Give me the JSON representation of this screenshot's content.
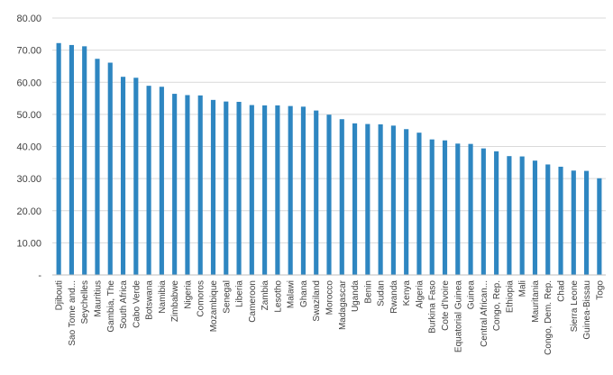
{
  "chart_data": {
    "type": "bar",
    "title": "",
    "xlabel": "",
    "ylabel": "",
    "ylim": [
      0,
      80
    ],
    "yticks": [
      0,
      10,
      20,
      30,
      40,
      50,
      60,
      70,
      80
    ],
    "ytick_labels": [
      "-",
      "10.00",
      "20.00",
      "30.00",
      "40.00",
      "50.00",
      "60.00",
      "70.00",
      "80.00"
    ],
    "grid": true,
    "legend": "none",
    "bar_color": "#2E86C1",
    "categories": [
      "Djibouti",
      "Sao Tome and...",
      "Seychelles",
      "Mauritius",
      "Gambia, The",
      "South Africa",
      "Cabo Verde",
      "Botswana",
      "Namibia",
      "Zimbabwe",
      "Nigeria",
      "Comoros",
      "Mozambique",
      "Senegal",
      "Liberia",
      "Cameroon",
      "Zambia",
      "Lesotho",
      "Malawi",
      "Ghana",
      "Swaziland",
      "Morocco",
      "Madagascar",
      "Uganda",
      "Benin",
      "Sudan",
      "Rwanda",
      "Kenya",
      "Algeria",
      "Burkina Faso",
      "Cote d'Ivoire",
      "Equatorial Guinea",
      "Guinea",
      "Central African...",
      "Congo, Rep.",
      "Ethiopia",
      "Mali",
      "Mauritania",
      "Congo, Dem. Rep.",
      "Chad",
      "Sierra Leone",
      "Guinea-Bissau",
      "Togo"
    ],
    "values": [
      72.2,
      71.6,
      71.2,
      67.3,
      66.1,
      61.7,
      61.4,
      58.9,
      58.6,
      56.4,
      56.0,
      55.9,
      54.5,
      54.0,
      53.9,
      52.9,
      52.8,
      52.8,
      52.6,
      52.4,
      51.2,
      49.9,
      48.5,
      47.2,
      47.0,
      46.9,
      46.5,
      45.4,
      44.3,
      42.2,
      41.9,
      40.9,
      40.8,
      39.4,
      38.5,
      37.0,
      36.9,
      35.6,
      34.4,
      33.7,
      32.5,
      32.4,
      30.1
    ]
  }
}
